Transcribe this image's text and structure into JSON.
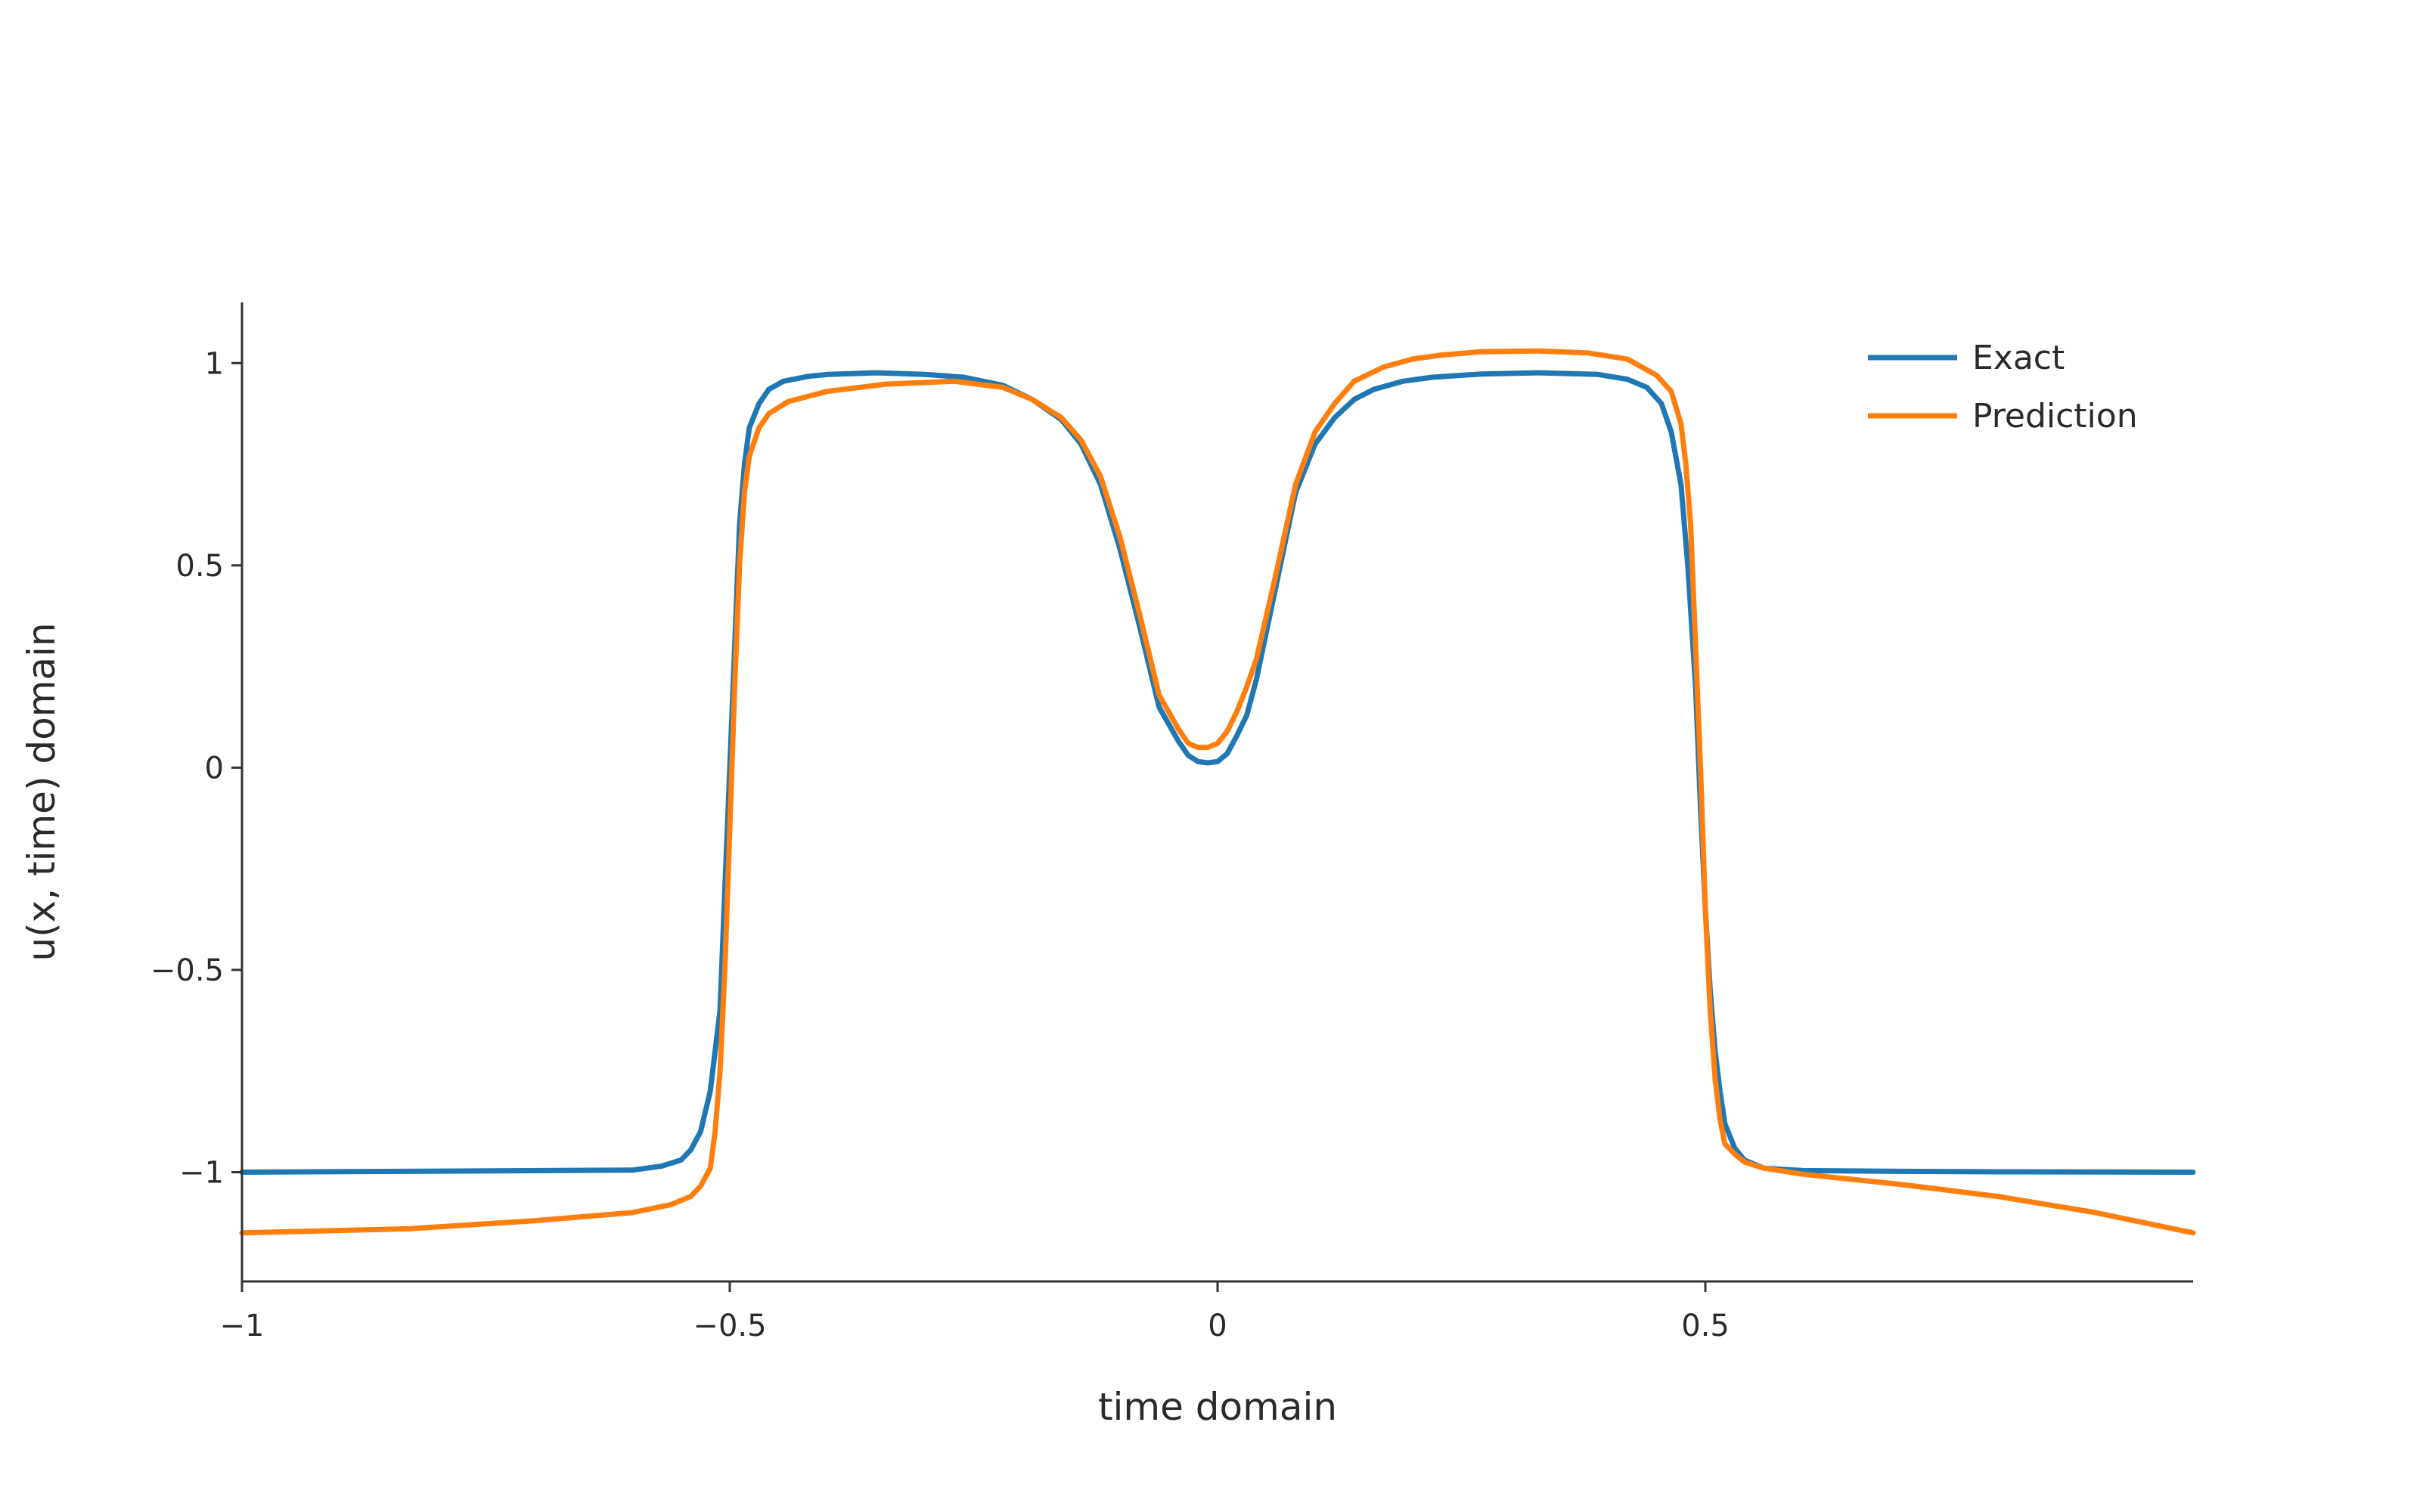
{
  "chart_data": {
    "type": "line",
    "title": "",
    "xlabel": "time domain",
    "ylabel": "u(x, time) domain",
    "xlim": [
      -1,
      1
    ],
    "ylim": [
      -1.27,
      1.15
    ],
    "grid": false,
    "legend_position": "top-right",
    "x_ticks": [
      {
        "value": -1,
        "label": "−1"
      },
      {
        "value": -0.5,
        "label": "−0.5"
      },
      {
        "value": 0,
        "label": "0"
      },
      {
        "value": 0.5,
        "label": "0.5"
      }
    ],
    "y_ticks": [
      {
        "value": 1,
        "label": "1"
      },
      {
        "value": 0.5,
        "label": "0.5"
      },
      {
        "value": 0,
        "label": "0"
      },
      {
        "value": -0.5,
        "label": "−0.5"
      },
      {
        "value": -1,
        "label": "−1"
      }
    ],
    "series": [
      {
        "name": "Exact",
        "color": "#1f77b4",
        "x": [
          -1,
          -0.6,
          -0.57,
          -0.55,
          -0.54,
          -0.53,
          -0.52,
          -0.51,
          -0.505,
          -0.5,
          -0.495,
          -0.49,
          -0.485,
          -0.48,
          -0.47,
          -0.46,
          -0.445,
          -0.42,
          -0.4,
          -0.35,
          -0.3,
          -0.26,
          -0.22,
          -0.19,
          -0.16,
          -0.14,
          -0.12,
          -0.1,
          -0.08,
          -0.06,
          -0.04,
          -0.03,
          -0.02,
          -0.01,
          0,
          0.01,
          0.02,
          0.03,
          0.04,
          0.06,
          0.08,
          0.1,
          0.12,
          0.14,
          0.16,
          0.19,
          0.22,
          0.27,
          0.33,
          0.39,
          0.42,
          0.44,
          0.455,
          0.465,
          0.475,
          0.482,
          0.49,
          0.495,
          0.5,
          0.505,
          0.51,
          0.515,
          0.52,
          0.53,
          0.54,
          0.56,
          0.6,
          0.7,
          0.8,
          1
        ],
        "y": [
          -1,
          -0.995,
          -0.985,
          -0.97,
          -0.945,
          -0.9,
          -0.8,
          -0.6,
          -0.3,
          0,
          0.3,
          0.6,
          0.75,
          0.84,
          0.9,
          0.935,
          0.955,
          0.967,
          0.972,
          0.976,
          0.972,
          0.965,
          0.945,
          0.91,
          0.86,
          0.8,
          0.7,
          0.54,
          0.35,
          0.15,
          0.065,
          0.03,
          0.015,
          0.012,
          0.015,
          0.035,
          0.08,
          0.13,
          0.22,
          0.45,
          0.68,
          0.8,
          0.865,
          0.91,
          0.935,
          0.955,
          0.965,
          0.973,
          0.976,
          0.972,
          0.96,
          0.94,
          0.9,
          0.83,
          0.7,
          0.5,
          0.2,
          -0.1,
          -0.35,
          -0.55,
          -0.7,
          -0.8,
          -0.88,
          -0.94,
          -0.97,
          -0.99,
          -0.996,
          -0.998,
          -0.999,
          -1
        ]
      },
      {
        "name": "Prediction",
        "color": "#ff7f0e",
        "x": [
          -1,
          -0.83,
          -0.7,
          -0.6,
          -0.56,
          -0.54,
          -0.53,
          -0.52,
          -0.515,
          -0.51,
          -0.505,
          -0.5,
          -0.495,
          -0.49,
          -0.485,
          -0.48,
          -0.47,
          -0.46,
          -0.44,
          -0.4,
          -0.34,
          -0.27,
          -0.22,
          -0.19,
          -0.16,
          -0.14,
          -0.12,
          -0.1,
          -0.08,
          -0.06,
          -0.04,
          -0.03,
          -0.02,
          -0.01,
          0,
          0.01,
          0.02,
          0.03,
          0.04,
          0.06,
          0.08,
          0.1,
          0.12,
          0.14,
          0.17,
          0.2,
          0.23,
          0.27,
          0.33,
          0.38,
          0.42,
          0.45,
          0.465,
          0.475,
          0.48,
          0.485,
          0.49,
          0.495,
          0.5,
          0.505,
          0.51,
          0.515,
          0.52,
          0.53,
          0.54,
          0.56,
          0.6,
          0.7,
          0.8,
          0.9,
          1
        ],
        "y": [
          -1.15,
          -1.14,
          -1.12,
          -1.1,
          -1.08,
          -1.06,
          -1.035,
          -0.99,
          -0.9,
          -0.75,
          -0.5,
          -0.15,
          0.2,
          0.5,
          0.68,
          0.77,
          0.84,
          0.875,
          0.905,
          0.93,
          0.948,
          0.955,
          0.94,
          0.91,
          0.865,
          0.81,
          0.72,
          0.57,
          0.38,
          0.18,
          0.095,
          0.06,
          0.05,
          0.05,
          0.06,
          0.09,
          0.14,
          0.2,
          0.27,
          0.48,
          0.7,
          0.83,
          0.9,
          0.955,
          0.99,
          1.01,
          1.02,
          1.028,
          1.03,
          1.025,
          1.01,
          0.97,
          0.93,
          0.85,
          0.75,
          0.6,
          0.3,
          0,
          -0.35,
          -0.6,
          -0.77,
          -0.87,
          -0.93,
          -0.955,
          -0.975,
          -0.99,
          -1.005,
          -1.03,
          -1.06,
          -1.1,
          -1.15
        ]
      }
    ]
  }
}
